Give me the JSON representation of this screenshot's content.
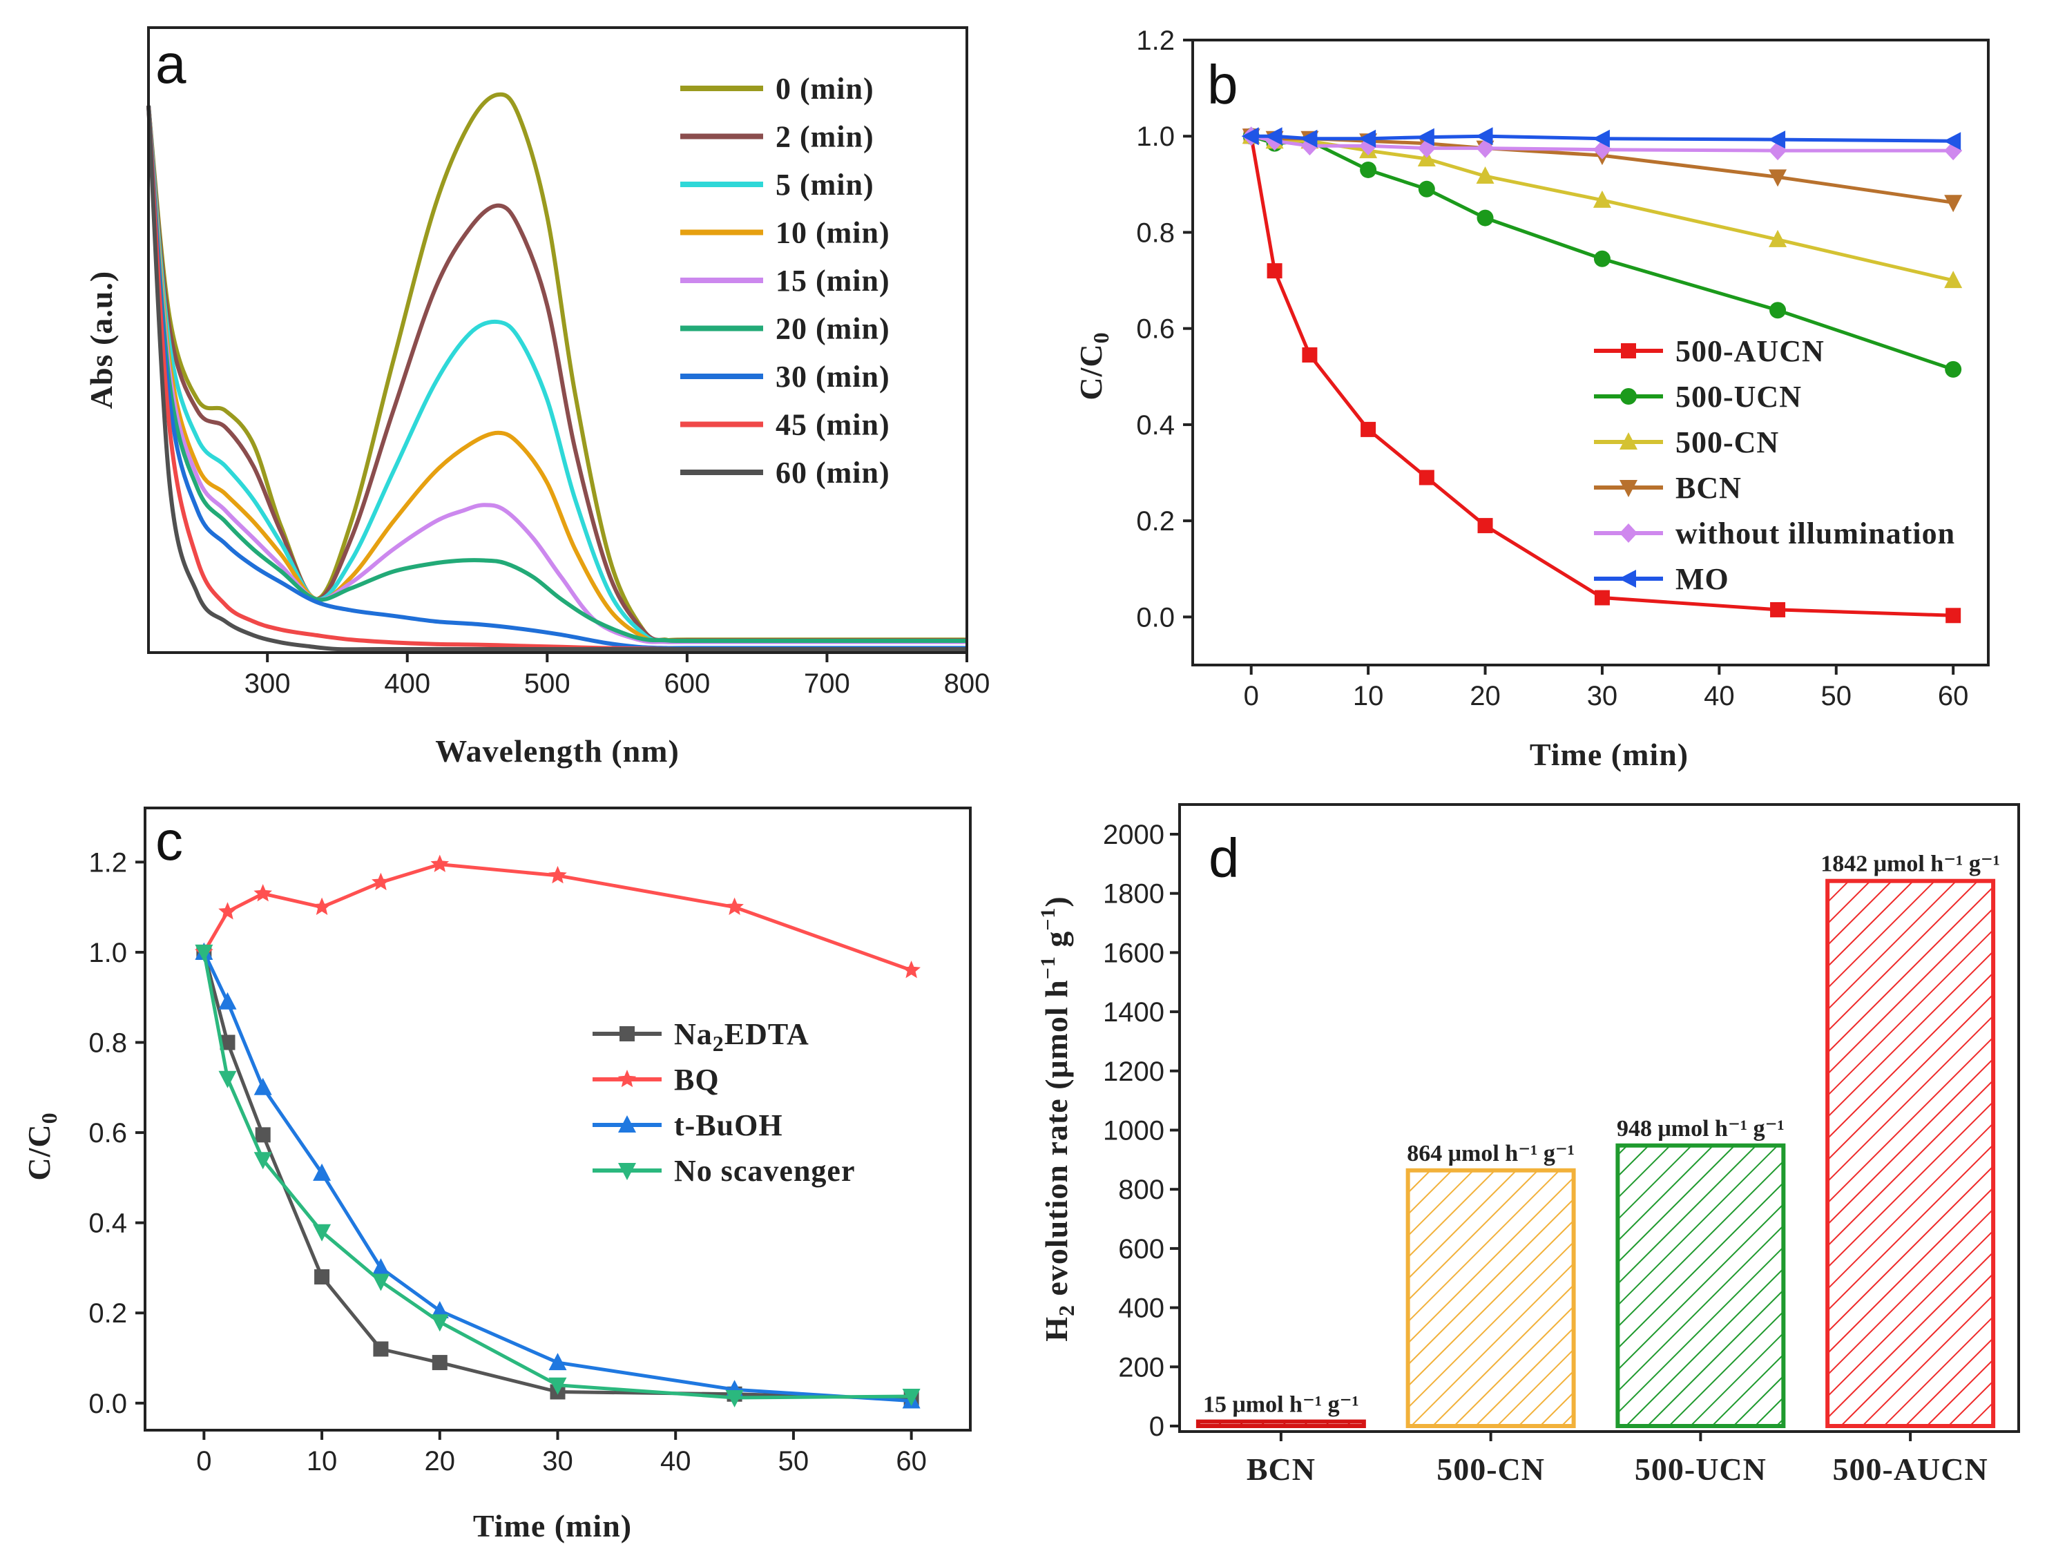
{
  "chart_data": [
    {
      "panel": "a",
      "type": "line",
      "xlabel": "Wavelength (nm)",
      "ylabel": "Abs (a.u.)",
      "xlim": [
        215,
        800
      ],
      "ylim": [
        0,
        1
      ],
      "xticks": [
        300,
        400,
        500,
        600,
        700,
        800
      ],
      "yticks": [],
      "legend_position": "top-right",
      "series": [
        {
          "name": "0 (min)",
          "color": "#9a9a1e",
          "x": [
            215,
            230,
            250,
            270,
            290,
            310,
            335,
            360,
            390,
            420,
            445,
            465,
            480,
            500,
            520,
            545,
            570,
            585,
            600,
            700,
            800
          ],
          "y": [
            0.98,
            0.6,
            0.45,
            0.43,
            0.37,
            0.22,
            0.09,
            0.23,
            0.52,
            0.8,
            0.95,
            1.0,
            0.96,
            0.78,
            0.46,
            0.16,
            0.03,
            0.017,
            0.017,
            0.017,
            0.017
          ]
        },
        {
          "name": "2 (min)",
          "color": "#8b4d4d",
          "x": [
            215,
            230,
            250,
            270,
            290,
            310,
            335,
            360,
            390,
            420,
            445,
            465,
            480,
            500,
            520,
            545,
            570,
            585,
            600,
            700,
            800
          ],
          "y": [
            0.98,
            0.58,
            0.43,
            0.4,
            0.33,
            0.21,
            0.09,
            0.2,
            0.43,
            0.65,
            0.76,
            0.8,
            0.76,
            0.62,
            0.36,
            0.13,
            0.03,
            0.016,
            0.016,
            0.016,
            0.016
          ]
        },
        {
          "name": "5 (min)",
          "color": "#2ed8d8",
          "x": [
            215,
            230,
            250,
            270,
            290,
            310,
            335,
            360,
            390,
            420,
            445,
            465,
            480,
            500,
            520,
            545,
            570,
            585,
            600,
            700,
            800
          ],
          "y": [
            0.98,
            0.55,
            0.38,
            0.33,
            0.27,
            0.19,
            0.09,
            0.16,
            0.32,
            0.48,
            0.57,
            0.59,
            0.56,
            0.45,
            0.27,
            0.1,
            0.025,
            0.015,
            0.015,
            0.015,
            0.015
          ]
        },
        {
          "name": "10 (min)",
          "color": "#e6a010",
          "x": [
            215,
            230,
            250,
            270,
            290,
            310,
            335,
            360,
            390,
            420,
            445,
            465,
            480,
            500,
            520,
            545,
            570,
            585,
            600,
            700,
            800
          ],
          "y": [
            0.98,
            0.52,
            0.33,
            0.28,
            0.23,
            0.17,
            0.09,
            0.13,
            0.23,
            0.32,
            0.37,
            0.39,
            0.37,
            0.3,
            0.18,
            0.07,
            0.02,
            0.014,
            0.014,
            0.014,
            0.014
          ]
        },
        {
          "name": "15 (min)",
          "color": "#cc88ee",
          "x": [
            215,
            230,
            250,
            270,
            290,
            310,
            335,
            360,
            390,
            420,
            440,
            455,
            470,
            490,
            510,
            535,
            565,
            585,
            600,
            700,
            800
          ],
          "y": [
            0.98,
            0.5,
            0.31,
            0.25,
            0.2,
            0.15,
            0.09,
            0.12,
            0.18,
            0.23,
            0.25,
            0.26,
            0.25,
            0.2,
            0.13,
            0.05,
            0.017,
            0.013,
            0.013,
            0.013,
            0.013
          ]
        },
        {
          "name": "20 (min)",
          "color": "#22aa77",
          "x": [
            215,
            230,
            250,
            270,
            290,
            310,
            335,
            360,
            390,
            420,
            440,
            455,
            470,
            490,
            510,
            535,
            565,
            585,
            600,
            700,
            800
          ],
          "y": [
            0.98,
            0.48,
            0.29,
            0.23,
            0.18,
            0.14,
            0.09,
            0.11,
            0.14,
            0.155,
            0.16,
            0.16,
            0.155,
            0.13,
            0.09,
            0.05,
            0.02,
            0.016,
            0.015,
            0.015,
            0.015
          ]
        },
        {
          "name": "30 (min)",
          "color": "#1f6fd8",
          "x": [
            215,
            230,
            250,
            270,
            290,
            310,
            335,
            360,
            390,
            420,
            450,
            480,
            510,
            540,
            565,
            585,
            600,
            700,
            800
          ],
          "y": [
            0.98,
            0.45,
            0.25,
            0.19,
            0.15,
            0.12,
            0.085,
            0.07,
            0.06,
            0.05,
            0.045,
            0.037,
            0.026,
            0.012,
            0.004,
            0.002,
            0.002,
            0.002,
            0.002
          ]
        },
        {
          "name": "45 (min)",
          "color": "#f04848",
          "x": [
            215,
            230,
            250,
            270,
            290,
            310,
            335,
            360,
            390,
            420,
            450,
            480,
            510,
            540,
            570,
            600,
            700,
            800
          ],
          "y": [
            0.98,
            0.4,
            0.16,
            0.08,
            0.05,
            0.035,
            0.025,
            0.017,
            0.012,
            0.009,
            0.008,
            0.006,
            0.004,
            0.002,
            0.001,
            0.0,
            0.0,
            0.0
          ]
        },
        {
          "name": "60 (min)",
          "color": "#505050",
          "x": [
            215,
            230,
            250,
            270,
            290,
            310,
            330,
            350,
            380,
            420,
            460,
            500,
            600,
            700,
            800
          ],
          "y": [
            0.98,
            0.3,
            0.1,
            0.05,
            0.025,
            0.012,
            0.005,
            0.0,
            0.0,
            0.0,
            0.0,
            0.0,
            0.0,
            0.0,
            0.0
          ]
        }
      ]
    },
    {
      "panel": "b",
      "type": "line",
      "xlabel": "Time (min)",
      "ylabel": "C/C0",
      "xlim": [
        -5,
        63
      ],
      "ylim": [
        -0.1,
        1.2
      ],
      "xticks": [
        0,
        10,
        20,
        30,
        40,
        50,
        60
      ],
      "yticks": [
        0.0,
        0.2,
        0.4,
        0.6,
        0.8,
        1.0,
        1.2
      ],
      "legend_position": "center-right",
      "series": [
        {
          "name": "500-AUCN",
          "color": "#e81919",
          "marker": "square",
          "x": [
            0,
            2,
            5,
            10,
            15,
            20,
            30,
            45,
            60
          ],
          "y": [
            1.0,
            0.72,
            0.545,
            0.39,
            0.29,
            0.19,
            0.04,
            0.015,
            0.003
          ]
        },
        {
          "name": "500-UCN",
          "color": "#1b9a1b",
          "marker": "circle",
          "x": [
            0,
            2,
            5,
            10,
            15,
            20,
            30,
            45,
            60
          ],
          "y": [
            1.0,
            0.985,
            0.99,
            0.93,
            0.89,
            0.83,
            0.745,
            0.638,
            0.515
          ]
        },
        {
          "name": "500-CN",
          "color": "#d4c232",
          "marker": "triangle-up",
          "x": [
            0,
            2,
            5,
            10,
            15,
            20,
            30,
            45,
            60
          ],
          "y": [
            1.0,
            0.99,
            0.99,
            0.97,
            0.953,
            0.917,
            0.867,
            0.785,
            0.7
          ]
        },
        {
          "name": "BCN",
          "color": "#b8712d",
          "marker": "triangle-down",
          "x": [
            0,
            2,
            5,
            10,
            15,
            20,
            30,
            45,
            60
          ],
          "y": [
            1.0,
            0.995,
            0.995,
            0.99,
            0.985,
            0.975,
            0.96,
            0.915,
            0.862
          ]
        },
        {
          "name": "without illumination",
          "color": "#cf88ee",
          "marker": "diamond",
          "x": [
            0,
            2,
            5,
            10,
            15,
            20,
            30,
            45,
            60
          ],
          "y": [
            1.0,
            0.99,
            0.98,
            0.98,
            0.975,
            0.975,
            0.972,
            0.97,
            0.97
          ]
        },
        {
          "name": "MO",
          "color": "#1f55e6",
          "marker": "triangle-left",
          "x": [
            0,
            2,
            5,
            10,
            15,
            20,
            30,
            45,
            60
          ],
          "y": [
            1.0,
            1.0,
            0.995,
            0.995,
            0.998,
            1.0,
            0.995,
            0.993,
            0.99
          ]
        }
      ]
    },
    {
      "panel": "c",
      "type": "line",
      "xlabel": "Time (min)",
      "ylabel": "C/C0",
      "xlim": [
        -5,
        65
      ],
      "ylim": [
        -0.06,
        1.32
      ],
      "xticks": [
        0,
        10,
        20,
        30,
        40,
        50,
        60
      ],
      "yticks": [
        0.0,
        0.2,
        0.4,
        0.6,
        0.8,
        1.0,
        1.2
      ],
      "legend_position": "center-right",
      "series": [
        {
          "name": "Na2EDTA",
          "color": "#555555",
          "marker": "square",
          "x": [
            0,
            2,
            5,
            10,
            15,
            20,
            30,
            45,
            60
          ],
          "y": [
            1.0,
            0.8,
            0.595,
            0.28,
            0.12,
            0.09,
            0.025,
            0.02,
            0.01
          ]
        },
        {
          "name": "BQ",
          "color": "#ff5050",
          "marker": "star",
          "x": [
            0,
            2,
            5,
            10,
            15,
            20,
            30,
            45,
            60
          ],
          "y": [
            1.0,
            1.09,
            1.13,
            1.1,
            1.155,
            1.195,
            1.17,
            1.1,
            0.96
          ]
        },
        {
          "name": "t-BuOH",
          "color": "#1f78e0",
          "marker": "triangle-up",
          "x": [
            0,
            2,
            5,
            10,
            15,
            20,
            30,
            45,
            60
          ],
          "y": [
            1.0,
            0.89,
            0.7,
            0.51,
            0.3,
            0.205,
            0.09,
            0.03,
            0.005
          ]
        },
        {
          "name": "No scavenger",
          "color": "#2bb87e",
          "marker": "triangle-down",
          "x": [
            0,
            2,
            5,
            10,
            15,
            20,
            30,
            45,
            60
          ],
          "y": [
            1.0,
            0.72,
            0.54,
            0.38,
            0.27,
            0.18,
            0.04,
            0.012,
            0.015
          ]
        }
      ]
    },
    {
      "panel": "d",
      "type": "bar",
      "categories": [
        "BCN",
        "500-CN",
        "500-UCN",
        "500-AUCN"
      ],
      "values": [
        15,
        864,
        948,
        1842
      ],
      "value_labels": [
        "15 μmol h⁻¹ g⁻¹",
        "864 μmol h⁻¹ g⁻¹",
        "948 μmol h⁻¹ g⁻¹",
        "1842 μmol h⁻¹ g⁻¹"
      ],
      "colors": [
        "#d41414",
        "#f2b13a",
        "#1f9a2e",
        "#ef2a2a"
      ],
      "xlabel": "",
      "ylabel": "H2 evolution rate (μmol h⁻¹ g⁻¹)",
      "ylim": [
        0,
        2000
      ],
      "yticks": [
        0,
        200,
        400,
        600,
        800,
        1000,
        1200,
        1400,
        1600,
        1800,
        2000
      ]
    }
  ],
  "panel_labels": [
    "a",
    "b",
    "c",
    "d"
  ]
}
